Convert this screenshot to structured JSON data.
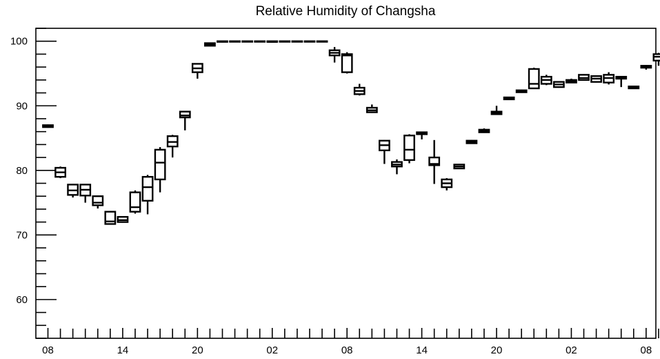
{
  "chart_data": {
    "type": "box",
    "title": "Relative Humidity of Changsha",
    "xlabel": "",
    "ylabel": "",
    "ylim": [
      54,
      102
    ],
    "y_major_ticks": [
      60,
      70,
      80,
      90,
      100
    ],
    "y_tick_labels": [
      "60",
      "70",
      "80",
      "90",
      "100"
    ],
    "x_tick_labels": [
      "08",
      "14",
      "20",
      "02",
      "08",
      "14",
      "20",
      "02",
      "08"
    ],
    "x_label_hours": [
      0,
      6,
      12,
      18,
      24,
      30,
      36,
      42,
      48
    ],
    "grid": false,
    "boxes": [
      {
        "hour": 0,
        "min": 86.6,
        "q1": 86.7,
        "median": 86.9,
        "q3": 87.0,
        "max": 87.1
      },
      {
        "hour": 1,
        "min": 78.8,
        "q1": 79.0,
        "median": 79.7,
        "q3": 80.4,
        "max": 80.6
      },
      {
        "hour": 2,
        "min": 75.8,
        "q1": 76.2,
        "median": 76.9,
        "q3": 77.8,
        "max": 77.9
      },
      {
        "hour": 3,
        "min": 75.0,
        "q1": 76.1,
        "median": 77.0,
        "q3": 77.8,
        "max": 77.9
      },
      {
        "hour": 4,
        "min": 74.1,
        "q1": 74.6,
        "median": 75.0,
        "q3": 76.0,
        "max": 76.1
      },
      {
        "hour": 5,
        "min": 71.6,
        "q1": 71.7,
        "median": 72.1,
        "q3": 73.6,
        "max": 73.7
      },
      {
        "hour": 6,
        "min": 71.9,
        "q1": 72.0,
        "median": 72.3,
        "q3": 72.8,
        "max": 72.9
      },
      {
        "hour": 7,
        "min": 73.3,
        "q1": 73.6,
        "median": 74.3,
        "q3": 76.6,
        "max": 76.9
      },
      {
        "hour": 8,
        "min": 73.2,
        "q1": 75.3,
        "median": 77.4,
        "q3": 79.0,
        "max": 79.3
      },
      {
        "hour": 9,
        "min": 76.6,
        "q1": 78.6,
        "median": 81.2,
        "q3": 83.2,
        "max": 83.6
      },
      {
        "hour": 10,
        "min": 82.0,
        "q1": 83.7,
        "median": 84.4,
        "q3": 85.3,
        "max": 85.5
      },
      {
        "hour": 11,
        "min": 86.2,
        "q1": 88.2,
        "median": 88.5,
        "q3": 89.1,
        "max": 89.2
      },
      {
        "hour": 12,
        "min": 94.2,
        "q1": 95.2,
        "median": 95.8,
        "q3": 96.5,
        "max": 96.6
      },
      {
        "hour": 13,
        "min": 99.2,
        "q1": 99.3,
        "median": 99.5,
        "q3": 99.7,
        "max": 99.8
      },
      {
        "hour": 14,
        "min": 99.8,
        "q1": 99.9,
        "median": 100.0,
        "q3": 100.0,
        "max": 100.0
      },
      {
        "hour": 15,
        "min": 100.0,
        "q1": 100.0,
        "median": 100.0,
        "q3": 100.0,
        "max": 100.0
      },
      {
        "hour": 16,
        "min": 100.0,
        "q1": 100.0,
        "median": 100.0,
        "q3": 100.0,
        "max": 100.0
      },
      {
        "hour": 17,
        "min": 100.0,
        "q1": 100.0,
        "median": 100.0,
        "q3": 100.0,
        "max": 100.0
      },
      {
        "hour": 18,
        "min": 99.8,
        "q1": 99.9,
        "median": 99.9,
        "q3": 100.0,
        "max": 100.0
      },
      {
        "hour": 19,
        "min": 100.0,
        "q1": 100.0,
        "median": 100.0,
        "q3": 100.0,
        "max": 100.0
      },
      {
        "hour": 20,
        "min": 100.0,
        "q1": 100.0,
        "median": 100.0,
        "q3": 100.0,
        "max": 100.0
      },
      {
        "hour": 21,
        "min": 100.0,
        "q1": 100.0,
        "median": 100.0,
        "q3": 100.0,
        "max": 100.0
      },
      {
        "hour": 22,
        "min": 100.0,
        "q1": 100.0,
        "median": 100.0,
        "q3": 100.0,
        "max": 100.0
      },
      {
        "hour": 23,
        "min": 96.7,
        "q1": 97.8,
        "median": 98.2,
        "q3": 98.6,
        "max": 99.1
      },
      {
        "hour": 24,
        "min": 95.0,
        "q1": 95.2,
        "median": 97.8,
        "q3": 98.0,
        "max": 98.3
      },
      {
        "hour": 25,
        "min": 91.6,
        "q1": 91.8,
        "median": 92.3,
        "q3": 92.8,
        "max": 93.4
      },
      {
        "hour": 26,
        "min": 88.9,
        "q1": 89.0,
        "median": 89.3,
        "q3": 89.7,
        "max": 90.2
      },
      {
        "hour": 27,
        "min": 81.0,
        "q1": 83.1,
        "median": 83.9,
        "q3": 84.6,
        "max": 84.7
      },
      {
        "hour": 28,
        "min": 79.4,
        "q1": 80.6,
        "median": 80.9,
        "q3": 81.3,
        "max": 81.7
      },
      {
        "hour": 29,
        "min": 81.1,
        "q1": 81.6,
        "median": 83.2,
        "q3": 85.4,
        "max": 85.6
      },
      {
        "hour": 30,
        "min": 84.8,
        "q1": 85.6,
        "median": 85.8,
        "q3": 85.9,
        "max": 86.0
      },
      {
        "hour": 31,
        "min": 77.9,
        "q1": 80.8,
        "median": 81.0,
        "q3": 82.0,
        "max": 84.7
      },
      {
        "hour": 32,
        "min": 76.9,
        "q1": 77.4,
        "median": 78.0,
        "q3": 78.6,
        "max": 78.8
      },
      {
        "hour": 33,
        "min": 80.2,
        "q1": 80.3,
        "median": 80.6,
        "q3": 80.9,
        "max": 81.0
      },
      {
        "hour": 34,
        "min": 84.1,
        "q1": 84.2,
        "median": 84.4,
        "q3": 84.6,
        "max": 84.7
      },
      {
        "hour": 35,
        "min": 85.8,
        "q1": 85.9,
        "median": 86.1,
        "q3": 86.3,
        "max": 86.5
      },
      {
        "hour": 36,
        "min": 88.6,
        "q1": 88.7,
        "median": 88.9,
        "q3": 89.1,
        "max": 90.0
      },
      {
        "hour": 37,
        "min": 90.9,
        "q1": 91.0,
        "median": 91.1,
        "q3": 91.3,
        "max": 91.4
      },
      {
        "hour": 38,
        "min": 92.0,
        "q1": 92.1,
        "median": 92.2,
        "q3": 92.4,
        "max": 92.5
      },
      {
        "hour": 39,
        "min": 92.6,
        "q1": 92.7,
        "median": 93.4,
        "q3": 95.7,
        "max": 95.9
      },
      {
        "hour": 40,
        "min": 93.2,
        "q1": 93.4,
        "median": 94.0,
        "q3": 94.5,
        "max": 94.8
      },
      {
        "hour": 41,
        "min": 92.8,
        "q1": 92.9,
        "median": 93.3,
        "q3": 93.7,
        "max": 93.8
      },
      {
        "hour": 42,
        "min": 93.5,
        "q1": 93.6,
        "median": 93.8,
        "q3": 94.0,
        "max": 94.2
      },
      {
        "hour": 43,
        "min": 93.9,
        "q1": 94.0,
        "median": 94.3,
        "q3": 94.8,
        "max": 94.9
      },
      {
        "hour": 44,
        "min": 93.6,
        "q1": 93.7,
        "median": 94.2,
        "q3": 94.6,
        "max": 94.7
      },
      {
        "hour": 45,
        "min": 93.3,
        "q1": 93.6,
        "median": 94.3,
        "q3": 94.8,
        "max": 95.2
      },
      {
        "hour": 46,
        "min": 92.9,
        "q1": 94.2,
        "median": 94.4,
        "q3": 94.5,
        "max": 94.6
      },
      {
        "hour": 47,
        "min": 92.6,
        "q1": 92.7,
        "median": 92.9,
        "q3": 93.0,
        "max": 93.1
      },
      {
        "hour": 48,
        "min": 95.6,
        "q1": 95.9,
        "median": 96.1,
        "q3": 96.2,
        "max": 96.3
      },
      {
        "hour": 49,
        "min": 96.2,
        "q1": 97.0,
        "median": 97.6,
        "q3": 98.0,
        "max": 98.2
      }
    ]
  }
}
